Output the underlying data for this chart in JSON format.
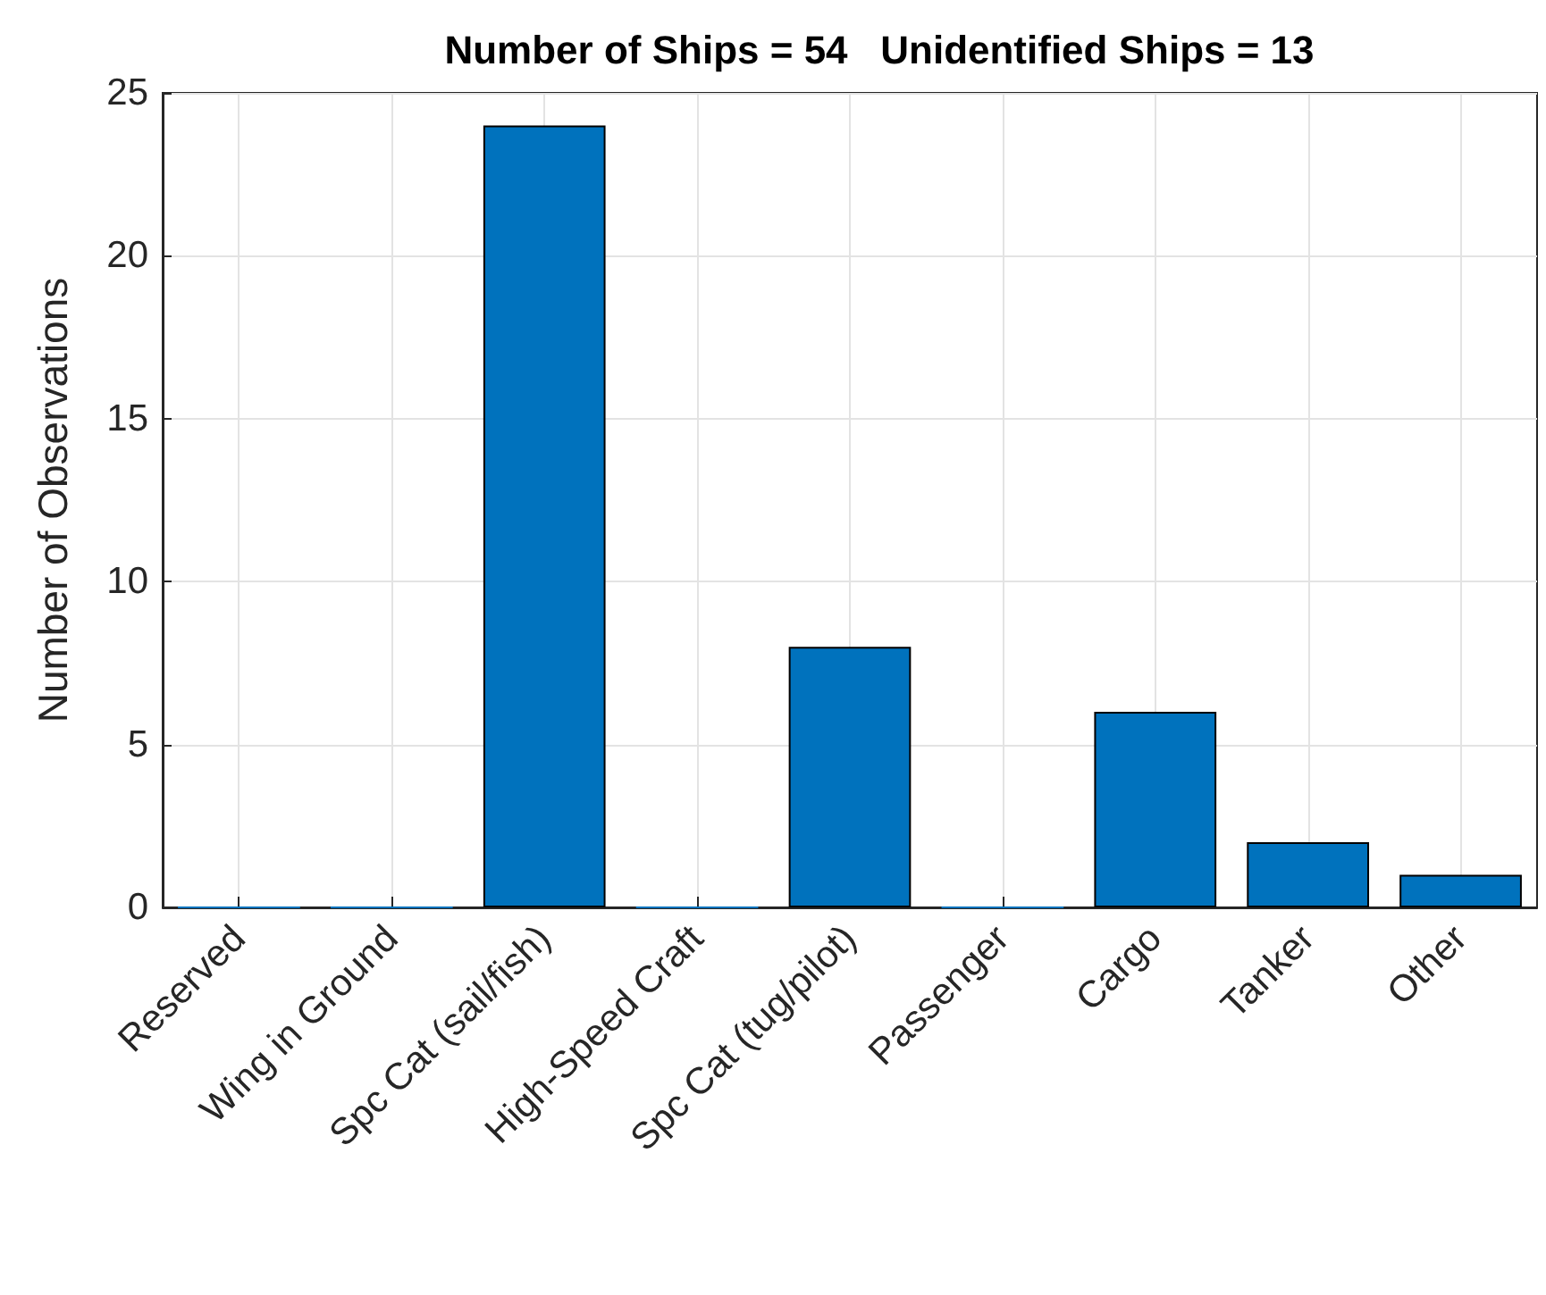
{
  "chart_data": {
    "type": "bar",
    "title": "Number of Ships = 54   Unidentified Ships = 13",
    "ylabel": "Number of Observations",
    "categories": [
      "Reserved",
      "Wing in Ground",
      "Spc Cat (sail/fish)",
      "High-Speed Craft",
      "Spc Cat (tug/pilot)",
      "Passenger",
      "Cargo",
      "Tanker",
      "Other"
    ],
    "values": [
      0,
      0,
      24,
      0,
      8,
      0,
      6,
      2,
      1
    ],
    "color": "#0072bd",
    "ylim": [
      0,
      25
    ],
    "yticks": [
      0,
      5,
      10,
      15,
      20,
      25
    ],
    "grid": true
  }
}
